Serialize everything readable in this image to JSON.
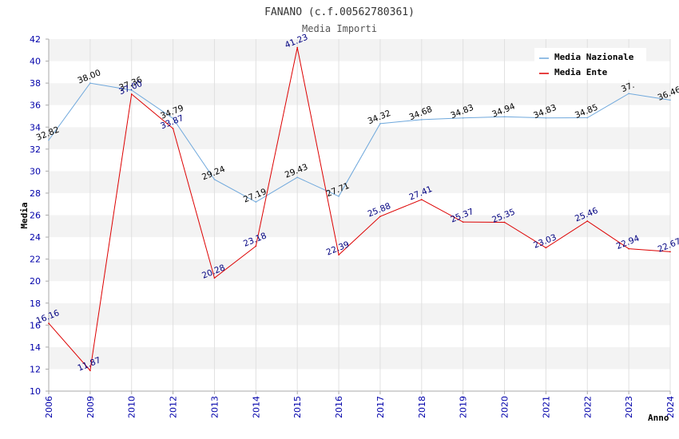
{
  "chart_data": {
    "type": "line",
    "title": "FANANO (c.f.00562780361)",
    "subtitle": "Media Importi",
    "xlabel": "Anno",
    "ylabel": "Media",
    "ylim": [
      10,
      42
    ],
    "yticks": [
      "10",
      "12",
      "14",
      "16",
      "18",
      "20",
      "22",
      "24",
      "26",
      "28",
      "30",
      "32",
      "34",
      "36",
      "38",
      "40",
      "42"
    ],
    "categories": [
      "2006",
      "2009",
      "2010",
      "2012",
      "2013",
      "2014",
      "2015",
      "2016",
      "2017",
      "2018",
      "2019",
      "2020",
      "2021",
      "2022",
      "2023",
      "2024"
    ],
    "grid": true,
    "legend_position": "top-right",
    "series": [
      {
        "name": "Media Nazionale",
        "color": "#6fa8dc",
        "values": [
          32.82,
          38.0,
          37.36,
          34.79,
          29.24,
          27.19,
          29.43,
          27.71,
          34.32,
          34.68,
          34.83,
          34.94,
          34.83,
          34.85,
          37.05,
          36.46
        ],
        "labels": [
          "32.82",
          "38.00",
          "37.36",
          "34.79",
          "29.24",
          "27.19",
          "29.43",
          "27.71",
          "34.32",
          "34.68",
          "34.83",
          "34.94",
          "34.83",
          "34.85",
          "37.",
          "36.46"
        ]
      },
      {
        "name": "Media Ente",
        "color": "#dd0000",
        "values": [
          16.16,
          11.87,
          37.0,
          33.87,
          20.28,
          23.18,
          41.23,
          22.39,
          25.88,
          27.41,
          25.37,
          25.35,
          23.03,
          25.46,
          22.94,
          22.67
        ],
        "labels": [
          "16.16",
          "11.87",
          "37.00",
          "33.87",
          "20.28",
          "23.18",
          "41.23",
          "22.39",
          "25.88",
          "27.41",
          "25.37",
          "25.35",
          "23.03",
          "25.46",
          "22.94",
          "22.67"
        ]
      }
    ]
  }
}
